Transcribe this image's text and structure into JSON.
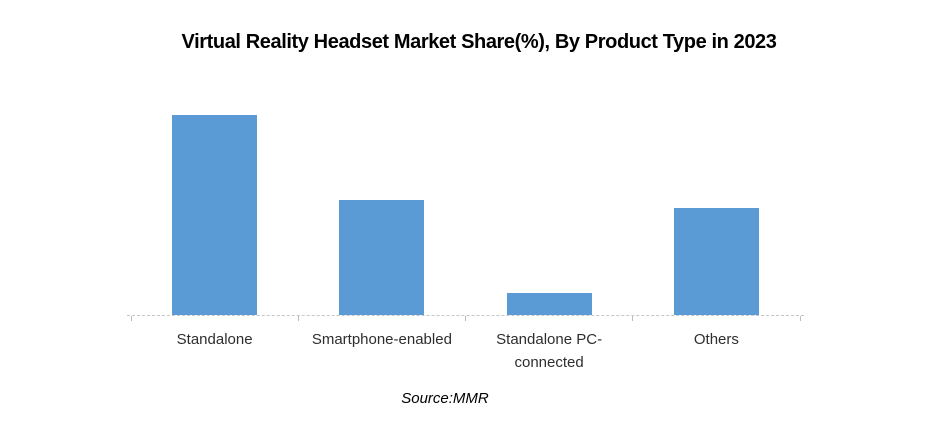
{
  "chart_data": {
    "type": "bar",
    "title": "Virtual Reality Headset Market Share(%), By Product Type in 2023",
    "categories": [
      "Standalone",
      "Smartphone-enabled",
      "Standalone PC-connected",
      "Others"
    ],
    "values": [
      45,
      26,
      5,
      24
    ],
    "unit": "%",
    "xlabel": "",
    "ylabel": "",
    "ylim": [
      0,
      50
    ],
    "bar_color": "#5B9BD5",
    "axis_color": "#c6c6c6",
    "gridlines": false,
    "legend": "none",
    "source_note": "Source:MMR"
  }
}
